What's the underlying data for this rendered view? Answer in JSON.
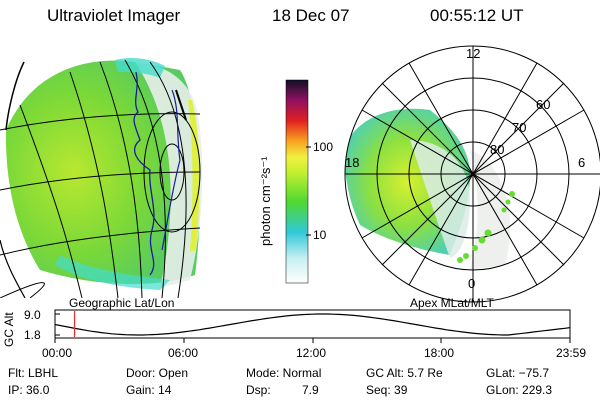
{
  "header": {
    "title": "Ultraviolet Imager",
    "date": "18 Dec 07",
    "time": "00:55:12 UT"
  },
  "colorbar": {
    "label": "photon cm⁻²s⁻¹",
    "ticks": [
      "100",
      "10"
    ]
  },
  "left_map": {
    "caption": "Geographic Lat/Lon"
  },
  "right_map": {
    "caption": "Apex MLat/MLT",
    "mlt_labels": {
      "top": "12",
      "left": "18",
      "right": "6",
      "bottom": "0"
    },
    "lat_labels": [
      "60",
      "70",
      "80"
    ]
  },
  "altitude_panel": {
    "ylabel": "GC Alt",
    "yticks": [
      "9.0",
      "1.8"
    ],
    "xticks": [
      "00:00",
      "06:00",
      "12:00",
      "18:00",
      "23:59"
    ],
    "current_time_fraction": 0.038
  },
  "info": {
    "flt": "Flt: LBHL",
    "door": "Door: Open",
    "mode": "Mode: Normal",
    "gc_alt": "GC Alt: 5.7 Re",
    "glat": "GLat: −75.7",
    "ip": "IP: 36.0",
    "gain": "Gain: 14",
    "dsp_label": "Dsp:",
    "dsp_value": "7.9",
    "seq": "Seq: 39",
    "glon": "GLon: 229.3"
  },
  "colors": {
    "green": "#66dd33",
    "yellow": "#d8f030",
    "cyan": "#44dccc",
    "grid": "#000000",
    "coast": "#1a1aa0",
    "marker": "#e03030"
  }
}
